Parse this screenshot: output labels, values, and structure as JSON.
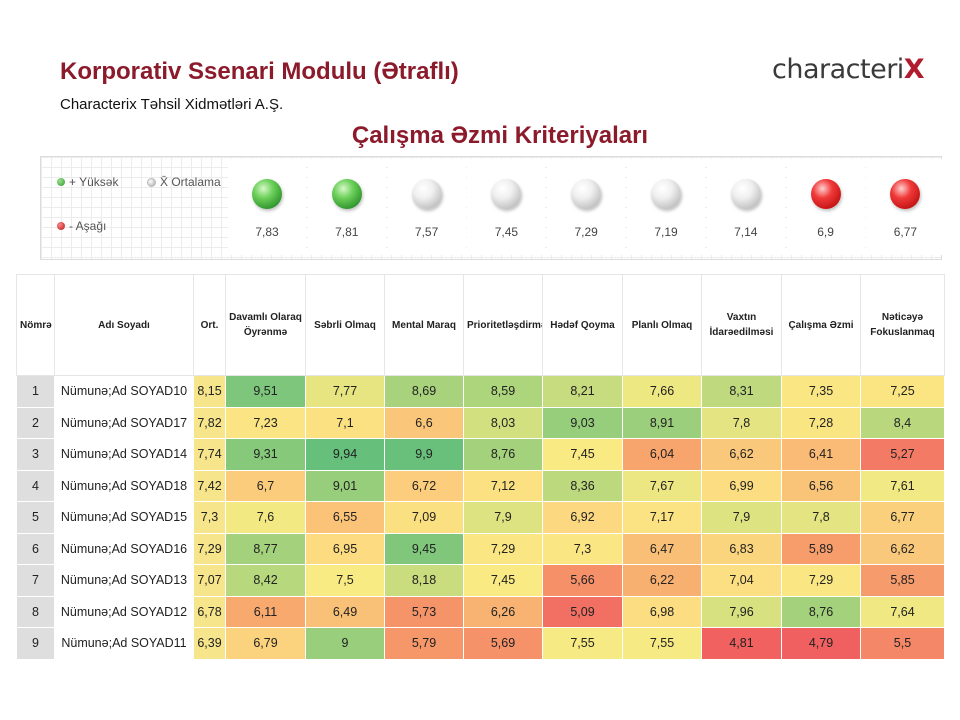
{
  "header": {
    "title": "Korporativ Ssenari Modulu (Ətraflı)",
    "subtitle": "Characterix Təhsil Xidmətləri A.Ş.",
    "logo": {
      "text": "characteri",
      "mark": "X"
    }
  },
  "section_title": "Çalışma Əzmi Kriteriyaları",
  "legend": {
    "high": "+ Yüksək",
    "avg": "X̄ Ortalama",
    "low": "- Aşağı"
  },
  "colors": {
    "brand": "#8b1a2b",
    "high": "#3ea83e",
    "avg": "#c8c8c8",
    "low": "#d61f1f"
  },
  "averages": [
    {
      "value": "7,83",
      "level": "green"
    },
    {
      "value": "7,81",
      "level": "green"
    },
    {
      "value": "7,57",
      "level": "gray"
    },
    {
      "value": "7,45",
      "level": "gray"
    },
    {
      "value": "7,29",
      "level": "gray"
    },
    {
      "value": "7,19",
      "level": "gray"
    },
    {
      "value": "7,14",
      "level": "gray"
    },
    {
      "value": "6,9",
      "level": "red"
    },
    {
      "value": "6,77",
      "level": "red"
    }
  ],
  "table": {
    "headers": {
      "num": "Nömrə",
      "name": "Adı Soyadı",
      "ort": "Ort.",
      "criteria": [
        "Davamlı Olaraq Öyrənmə",
        "Səbrli Olmaq",
        "Mental Maraq",
        "Prioritetləşdirmə",
        "Hədəf Qoyma",
        "Planlı Olmaq",
        "Vaxtın İdarəedilməsi",
        "Çalışma Əzmi",
        "Nəticəyə Fokuslanmaq"
      ]
    },
    "rows": [
      {
        "num": "1",
        "name": "Nümunə;Ad SOYAD10",
        "ort": "8,15",
        "scores": [
          "9,51",
          "7,77",
          "8,69",
          "8,59",
          "8,21",
          "7,66",
          "8,31",
          "7,35",
          "7,25"
        ]
      },
      {
        "num": "2",
        "name": "Nümunə;Ad SOYAD17",
        "ort": "7,82",
        "scores": [
          "7,23",
          "7,1",
          "6,6",
          "8,03",
          "9,03",
          "8,91",
          "7,8",
          "7,28",
          "8,4"
        ]
      },
      {
        "num": "3",
        "name": "Nümunə;Ad SOYAD14",
        "ort": "7,74",
        "scores": [
          "9,31",
          "9,94",
          "9,9",
          "8,76",
          "7,45",
          "6,04",
          "6,62",
          "6,41",
          "5,27"
        ]
      },
      {
        "num": "4",
        "name": "Nümunə;Ad SOYAD18",
        "ort": "7,42",
        "scores": [
          "6,7",
          "9,01",
          "6,72",
          "7,12",
          "8,36",
          "7,67",
          "6,99",
          "6,56",
          "7,61"
        ]
      },
      {
        "num": "5",
        "name": "Nümunə;Ad SOYAD15",
        "ort": "7,3",
        "scores": [
          "7,6",
          "6,55",
          "7,09",
          "7,9",
          "6,92",
          "7,17",
          "7,9",
          "7,8",
          "6,77"
        ]
      },
      {
        "num": "6",
        "name": "Nümunə;Ad SOYAD16",
        "ort": "7,29",
        "scores": [
          "8,77",
          "6,95",
          "9,45",
          "7,29",
          "7,3",
          "6,47",
          "6,83",
          "5,89",
          "6,62"
        ]
      },
      {
        "num": "7",
        "name": "Nümunə;Ad SOYAD13",
        "ort": "7,07",
        "scores": [
          "8,42",
          "7,5",
          "8,18",
          "7,45",
          "5,66",
          "6,22",
          "7,04",
          "7,29",
          "5,85"
        ]
      },
      {
        "num": "8",
        "name": "Nümunə;Ad SOYAD12",
        "ort": "6,78",
        "scores": [
          "6,11",
          "6,49",
          "5,73",
          "6,26",
          "5,09",
          "6,98",
          "7,96",
          "8,76",
          "7,64"
        ]
      },
      {
        "num": "9",
        "name": "Nümunə;Ad SOYAD11",
        "ort": "6,39",
        "scores": [
          "6,79",
          "9",
          "5,79",
          "5,69",
          "7,55",
          "7,55",
          "4,81",
          "4,79",
          "5,5"
        ]
      }
    ]
  }
}
